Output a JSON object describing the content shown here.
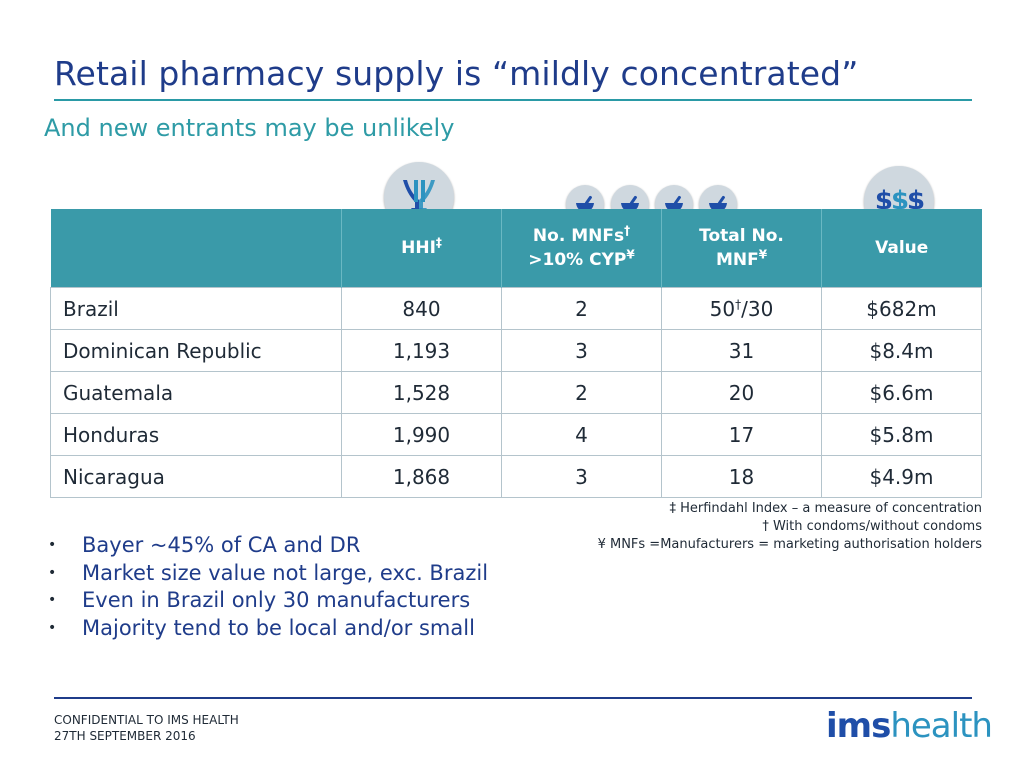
{
  "title": "Retail pharmacy supply is “mildly concentrated”",
  "subtitle": "And new entrants may be unlikely",
  "header_icons": {
    "hhi": "funnel-arrows-icon",
    "mnfs": "mortar-pestle-icon",
    "value": "dollar-icon",
    "value_text": [
      "$",
      "$",
      "$"
    ]
  },
  "table": {
    "headers": {
      "hhi": "HHI",
      "hhi_mark": "‡",
      "mnfs_line1": "No. MNFs",
      "mnfs_line1_mark": "†",
      "mnfs_line2": ">10% CYP",
      "mnfs_line2_mark": "¥",
      "total_line1": "Total No.",
      "total_line2": "MNF",
      "total_mark": "¥",
      "value": "Value"
    },
    "rows": [
      {
        "country": "Brazil",
        "hhi": "840",
        "mnfs": "2",
        "total": "50",
        "total_mark": "†",
        "total_suffix": "/30",
        "value": "$682m"
      },
      {
        "country": "Dominican Republic",
        "hhi": "1,193",
        "mnfs": "3",
        "total": "31",
        "value": "$8.4m"
      },
      {
        "country": "Guatemala",
        "hhi": "1,528",
        "mnfs": "2",
        "total": "20",
        "value": "$6.6m"
      },
      {
        "country": "Honduras",
        "hhi": "1,990",
        "mnfs": "4",
        "total": "17",
        "value": "$5.8m"
      },
      {
        "country": "Nicaragua",
        "hhi": "1,868",
        "mnfs": "3",
        "total": "18",
        "value": "$4.9m"
      }
    ]
  },
  "footnotes": [
    "‡ Herfindahl Index – a measure of concentration",
    "† With condoms/without condoms",
    "¥ MNFs =Manufacturers = marketing authorisation holders"
  ],
  "bullets": [
    "Bayer ~45% of CA and DR",
    "Market size value not large, exc. Brazil",
    "Even in Brazil only 30 manufacturers",
    "Majority tend to be local and/or small"
  ],
  "footer": {
    "line1": "CONFIDENTIAL TO IMS HEALTH",
    "line2": "27TH SEPTEMBER 2016"
  },
  "logo": {
    "bold": "ims",
    "light": "health"
  },
  "colors": {
    "title": "#1f3c8a",
    "accent_teal": "#3a9aa9",
    "subtitle": "#2e9ba6",
    "brand_blue": "#1f4ea8"
  }
}
